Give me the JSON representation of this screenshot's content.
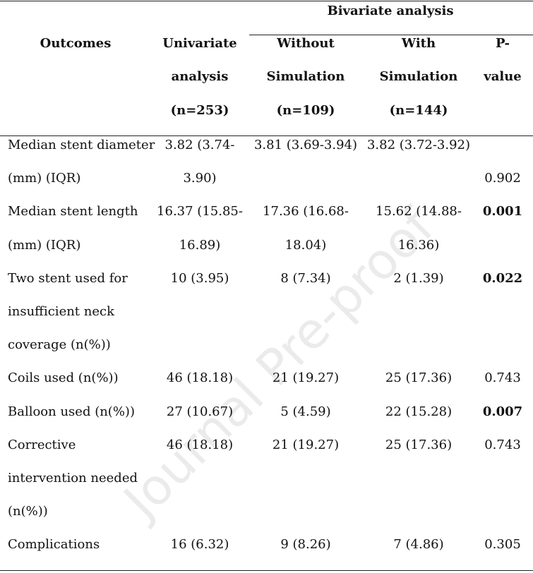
{
  "watermark": "Journal Pre-proof",
  "header": {
    "outcomes": "Outcomes",
    "bivariate": "Bivariate analysis",
    "univariate": [
      "Univariate",
      "analysis",
      "(n=253)"
    ],
    "without": [
      "Without",
      "Simulation",
      "(n=109)"
    ],
    "with": [
      "With",
      "Simulation",
      "(n=144)"
    ],
    "pvalue": [
      "P-",
      "value"
    ]
  },
  "rows": [
    {
      "outcome": [
        "Median stent diameter",
        "(mm)  (IQR)"
      ],
      "univariate": [
        "3.82 (3.74-",
        "3.90)"
      ],
      "without": [
        "3.81 (3.69-3.94)"
      ],
      "with": [
        "3.82 (3.72-3.92)"
      ],
      "pvalue": "0.902",
      "bold": false
    },
    {
      "outcome": [
        "Median stent length",
        "(mm)  (IQR)"
      ],
      "univariate": [
        "16.37 (15.85-",
        "16.89)"
      ],
      "without": [
        "17.36 (16.68-",
        "18.04)"
      ],
      "with": [
        "15.62 (14.88-",
        "16.36)"
      ],
      "pvalue": "0.001",
      "bold": true
    },
    {
      "outcome": [
        "Two stent used for",
        "insufficient neck",
        "coverage (n(%))"
      ],
      "univariate": [
        "10 (3.95)"
      ],
      "without": [
        "8 (7.34)"
      ],
      "with": [
        "2 (1.39)"
      ],
      "pvalue": "0.022",
      "bold": true
    },
    {
      "outcome": [
        "Coils used (n(%))"
      ],
      "univariate": [
        "46 (18.18)"
      ],
      "without": [
        "21 (19.27)"
      ],
      "with": [
        "25 (17.36)"
      ],
      "pvalue": "0.743",
      "bold": false
    },
    {
      "outcome": [
        "Balloon used (n(%))"
      ],
      "univariate": [
        "27 (10.67)"
      ],
      "without": [
        "5 (4.59)"
      ],
      "with": [
        "22 (15.28)"
      ],
      "pvalue": "0.007",
      "bold": true
    },
    {
      "outcome": [
        "Corrective",
        "intervention needed",
        "(n(%))"
      ],
      "univariate": [
        "46 (18.18)"
      ],
      "without": [
        "21 (19.27)"
      ],
      "with": [
        "25 (17.36)"
      ],
      "pvalue": "0.743",
      "bold": false
    },
    {
      "outcome": [
        "Complications"
      ],
      "univariate": [
        "16 (6.32)"
      ],
      "without": [
        "9 (8.26)"
      ],
      "with": [
        "7 (4.86)"
      ],
      "pvalue": "0.305",
      "bold": false
    }
  ]
}
